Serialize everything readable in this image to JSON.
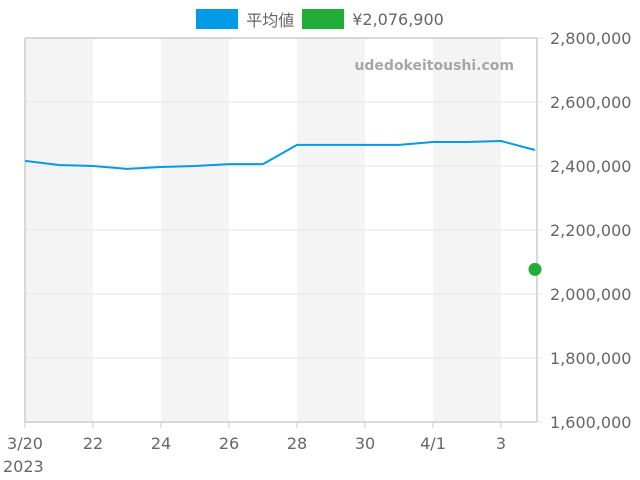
{
  "legend": {
    "items": [
      {
        "label": "平均値",
        "color": "#039be5"
      },
      {
        "label": "¥2,076,900",
        "color": "#22ac38"
      }
    ]
  },
  "watermark": "udedokeitoushi.com",
  "colors": {
    "line": "#039be5",
    "point": "#22ac38",
    "band": "#f4f4f4",
    "grid": "#e6e6e6",
    "axis": "#cccccc"
  },
  "chart_data": {
    "type": "line",
    "title": "",
    "xlabel": "",
    "ylabel": "",
    "x": [
      "2023-03-20",
      "2023-03-21",
      "2023-03-22",
      "2023-03-23",
      "2023-03-24",
      "2023-03-25",
      "2023-03-26",
      "2023-03-27",
      "2023-03-28",
      "2023-03-29",
      "2023-03-30",
      "2023-03-31",
      "2023-04-01",
      "2023-04-02",
      "2023-04-03",
      "2023-04-04"
    ],
    "series": [
      {
        "name": "平均値",
        "type": "line",
        "color": "#039be5",
        "values": [
          2416000,
          2403000,
          2400000,
          2391000,
          2397000,
          2400000,
          2406000,
          2406000,
          2466000,
          2466000,
          2466000,
          2466000,
          2475000,
          2475000,
          2478000,
          2450000
        ]
      },
      {
        "name": "¥2,076,900",
        "type": "scatter",
        "color": "#22ac38",
        "points": [
          {
            "x": "2023-04-04",
            "y": 2076900
          }
        ]
      }
    ],
    "ylim": [
      1600000,
      2800000
    ],
    "y_ticks": [
      "1,600,000",
      "1,800,000",
      "2,000,000",
      "2,200,000",
      "2,400,000",
      "2,600,000",
      "2,800,000"
    ],
    "y_tick_values": [
      1600000,
      1800000,
      2000000,
      2200000,
      2400000,
      2600000,
      2800000
    ],
    "x_ticks": [
      {
        "day": 0,
        "label": "3/20",
        "sublabel": "2023"
      },
      {
        "day": 2,
        "label": "22"
      },
      {
        "day": 4,
        "label": "24"
      },
      {
        "day": 6,
        "label": "26"
      },
      {
        "day": 8,
        "label": "28"
      },
      {
        "day": 10,
        "label": "30"
      },
      {
        "day": 12,
        "label": "4/1"
      },
      {
        "day": 14,
        "label": "3"
      }
    ],
    "shaded_bands": [
      [
        0,
        2
      ],
      [
        4,
        6
      ],
      [
        8,
        10
      ],
      [
        12,
        14
      ]
    ],
    "grid": true,
    "y_axis_position": "right",
    "legend_position": "top"
  }
}
